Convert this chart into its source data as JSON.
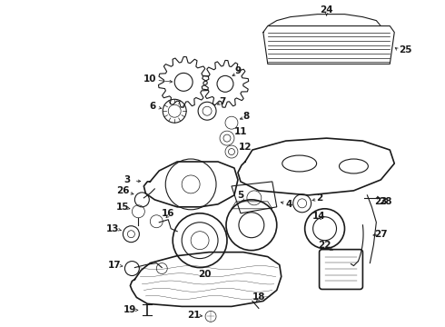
{
  "bg_color": "#ffffff",
  "line_color": "#1a1a1a",
  "fig_width": 4.9,
  "fig_height": 3.6,
  "dpi": 100,
  "label_fontsize": 7.5
}
